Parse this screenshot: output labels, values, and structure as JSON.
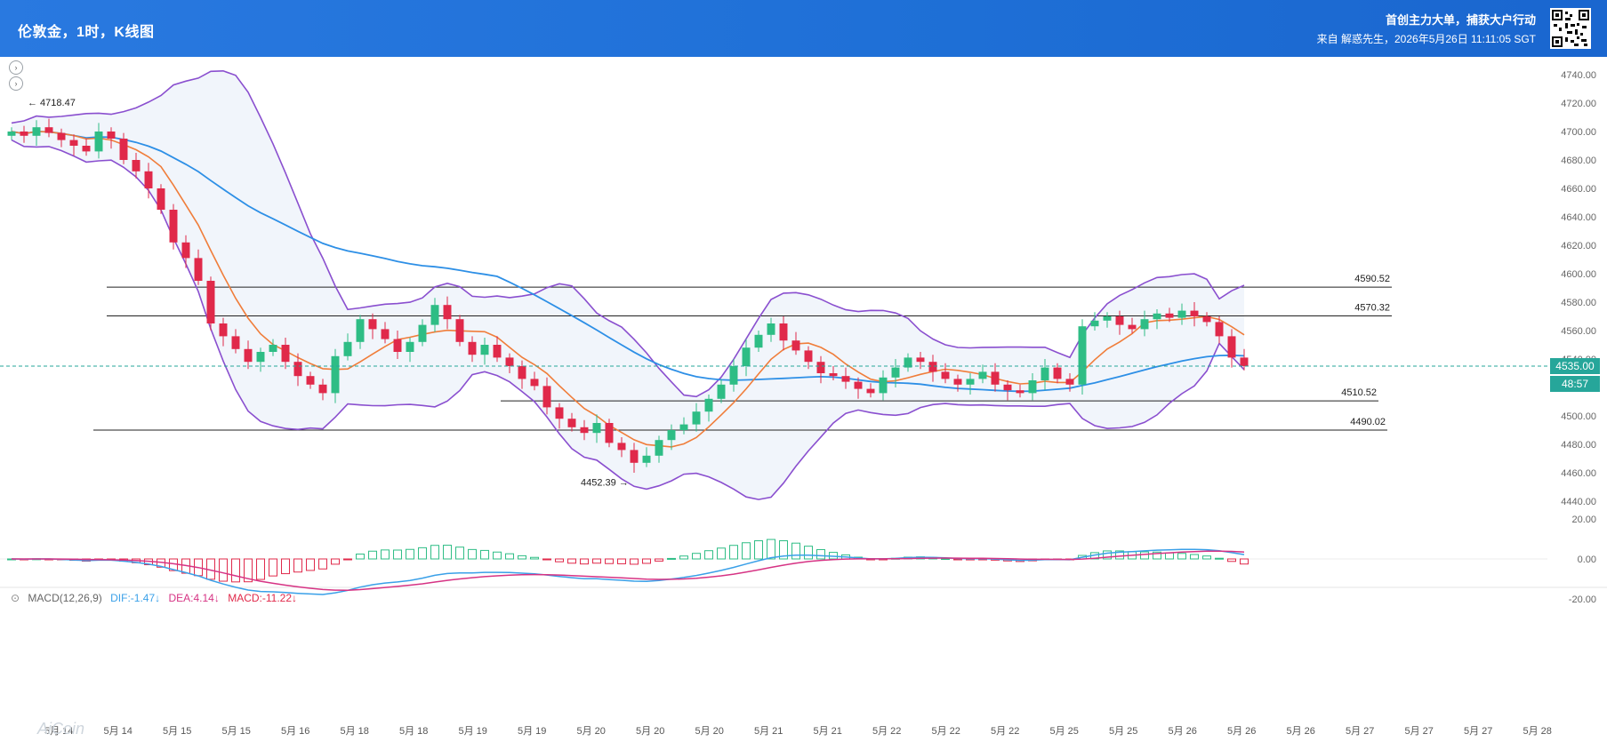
{
  "header": {
    "title": "伦敦金，1时，K线图",
    "slogan": "首创主力大单，捕获大户行动",
    "source": "来自 解惑先生，2026年5月26日 11:11:05 SGT"
  },
  "price_axis": [
    "4740.00",
    "4720.00",
    "4700.00",
    "4680.00",
    "4660.00",
    "4640.00",
    "4620.00",
    "4600.00",
    "4580.00",
    "4560.00",
    "4540.00",
    "4520.00",
    "4500.00",
    "4480.00",
    "4460.00",
    "4440.00"
  ],
  "macd_axis": [
    "20.00",
    "0.00",
    "-20.00"
  ],
  "time_axis": [
    "5月 14",
    "5月 14",
    "5月 15",
    "5月 15",
    "5月 16",
    "5月 18",
    "5月 18",
    "5月 19",
    "5月 19",
    "5月 20",
    "5月 20",
    "5月 20",
    "5月 21",
    "5月 21",
    "5月 22",
    "5月 22",
    "5月 22",
    "5月 25",
    "5月 25",
    "5月 26",
    "5月 26",
    "5月 26",
    "5月 27",
    "5月 27",
    "5月 27",
    "5月 28"
  ],
  "current_price": {
    "value": "4535.00",
    "countdown": "48:57",
    "color": "#26a69a"
  },
  "levels": [
    {
      "label": "4590.52",
      "value": 4590.52
    },
    {
      "label": "4570.32",
      "value": 4570.32
    },
    {
      "label": "4510.52",
      "value": 4510.52
    },
    {
      "label": "4490.02",
      "value": 4490.02
    }
  ],
  "annotations": {
    "high": "← 4718.47",
    "low": "4452.39 →"
  },
  "macd": {
    "name": "MACD(12,26,9)",
    "dif": "DIF:-1.47↓",
    "dea": "DEA:4.14↓",
    "hist": "MACD:-11.22↓"
  },
  "watermark": "AiCoin",
  "colors": {
    "up": "#2ebd85",
    "down": "#e0294a",
    "ma_orange": "#f07d3a",
    "ma_blue": "#2d8fe6",
    "boll": "#8a4fcf",
    "dif": "#3aa0e8",
    "dea": "#d63384"
  },
  "chart_data": {
    "type": "candlestick",
    "ylim": [
      4440,
      4740
    ],
    "closes": [
      4700,
      4697,
      4703,
      4699,
      4694,
      4690,
      4686,
      4700,
      4695,
      4680,
      4672,
      4660,
      4645,
      4622,
      4611,
      4595,
      4565,
      4556,
      4547,
      4538,
      4545,
      4550,
      4538,
      4528,
      4522,
      4516,
      4542,
      4552,
      4568,
      4561,
      4554,
      4545,
      4552,
      4564,
      4578,
      4568,
      4552,
      4543,
      4550,
      4541,
      4535,
      4526,
      4521,
      4506,
      4498,
      4492,
      4488,
      4495,
      4481,
      4476,
      4467,
      4472,
      4483,
      4490,
      4494,
      4503,
      4512,
      4522,
      4535,
      4548,
      4557,
      4565,
      4553,
      4546,
      4538,
      4530,
      4528,
      4524,
      4519,
      4516,
      4527,
      4534,
      4541,
      4538,
      4531,
      4526,
      4522,
      4526,
      4531,
      4522,
      4518,
      4516,
      4525,
      4534,
      4526,
      4522,
      4563,
      4567,
      4570,
      4564,
      4561,
      4568,
      4572,
      4569,
      4574,
      4570,
      4566,
      4556,
      4541,
      4535
    ]
  }
}
